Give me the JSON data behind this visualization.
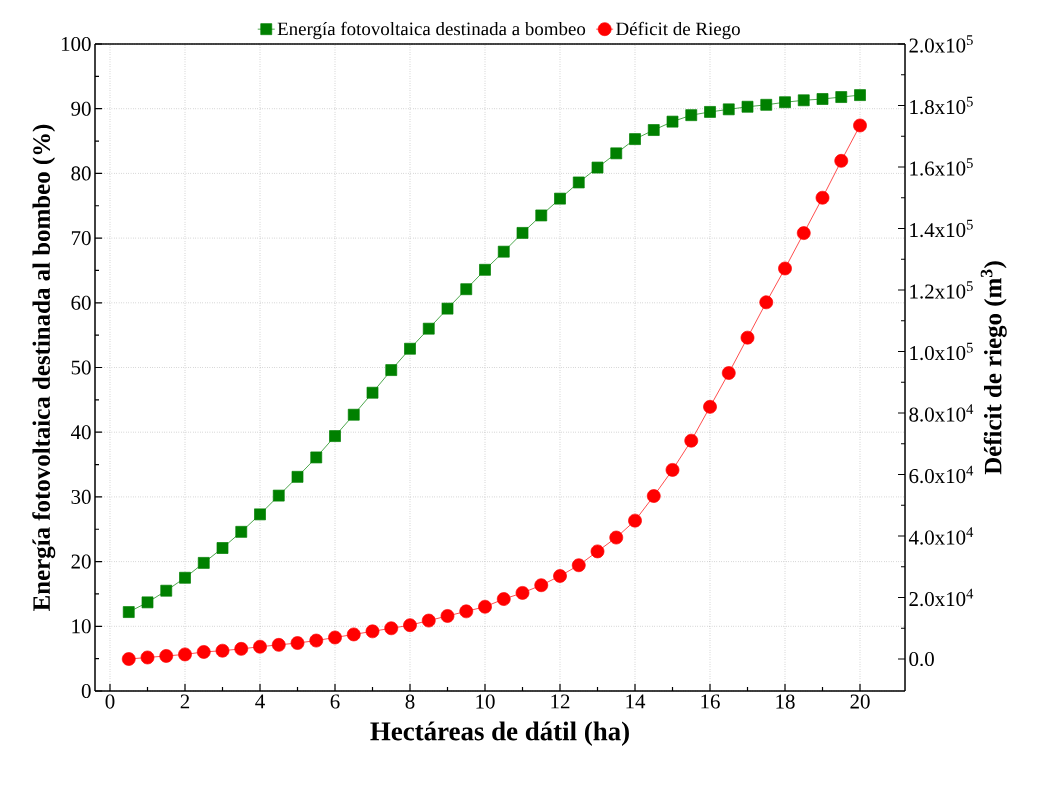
{
  "chart_data": {
    "type": "line",
    "xlabel": "Hectáreas de dátil (ha)",
    "ylabel": "Energía fotovoltaica destinada al bombeo (%)",
    "y2label": "Déficit de riego (m$^{3}$)",
    "x": [
      0.5,
      1,
      1.5,
      2,
      2.5,
      3,
      3.5,
      4,
      4.5,
      5,
      5.5,
      6,
      6.5,
      7,
      7.5,
      8,
      8.5,
      9,
      9.5,
      10,
      10.5,
      11,
      11.5,
      12,
      12.5,
      13,
      13.5,
      14,
      14.5,
      15,
      15.5,
      16,
      16.5,
      17,
      17.5,
      18,
      18.5,
      19,
      19.5,
      20
    ],
    "series": [
      {
        "name": "Energía fotovoltaica destinada a bombeo",
        "color": "#008000",
        "marker": "square",
        "line_style": "solid",
        "axis": "y",
        "values": [
          12.2,
          13.7,
          15.5,
          17.5,
          19.8,
          22.1,
          24.6,
          27.3,
          30.2,
          33.1,
          36.1,
          39.4,
          42.7,
          46.1,
          49.6,
          52.9,
          56.0,
          59.1,
          62.1,
          65.1,
          67.9,
          70.8,
          73.5,
          76.1,
          78.6,
          80.9,
          83.1,
          85.3,
          86.7,
          88.0,
          89.0,
          89.5,
          89.9,
          90.3,
          90.6,
          91.0,
          91.3,
          91.5,
          91.8,
          92.1
        ]
      },
      {
        "name": "Déficit de Riego",
        "color": "#ff0000",
        "marker": "circle",
        "line_style": "solid",
        "axis": "y2",
        "values": [
          0,
          500,
          1000,
          1500,
          2300,
          2700,
          3300,
          4000,
          4600,
          5200,
          6000,
          7000,
          8000,
          9000,
          10000,
          11000,
          12500,
          14000,
          15500,
          17000,
          19500,
          21500,
          24000,
          27000,
          30500,
          35000,
          39500,
          45000,
          53000,
          61500,
          71000,
          82000,
          93000,
          104500,
          116000,
          127000,
          138500,
          150000,
          162000,
          173500
        ]
      }
    ],
    "xlim": [
      -0.4,
      21.2
    ],
    "xticks": [
      0,
      2,
      4,
      6,
      8,
      10,
      12,
      14,
      16,
      18,
      20
    ],
    "ylim": [
      0,
      100
    ],
    "yticks": [
      0,
      10,
      20,
      30,
      40,
      50,
      60,
      70,
      80,
      90,
      100
    ],
    "y2lim": [
      -10400,
      200000
    ],
    "y2ticks": [
      {
        "value": 0,
        "label": "0.0"
      },
      {
        "value": 20000,
        "label": "2.0x10$^{4}$"
      },
      {
        "value": 40000,
        "label": "4.0x10$^{4}$"
      },
      {
        "value": 60000,
        "label": "6.0x10$^{4}$"
      },
      {
        "value": 80000,
        "label": "8.0x10$^{4}$"
      },
      {
        "value": 100000,
        "label": "1.0x10$^{5}$"
      },
      {
        "value": 120000,
        "label": "1.2x10$^{5}$"
      },
      {
        "value": 140000,
        "label": "1.4x10$^{5}$"
      },
      {
        "value": 160000,
        "label": "1.6x10$^{5}$"
      },
      {
        "value": 180000,
        "label": "1.8x10$^{5}$"
      },
      {
        "value": 200000,
        "label": "2.0x10$^{5}$"
      }
    ],
    "grid": true,
    "legend": "top"
  }
}
